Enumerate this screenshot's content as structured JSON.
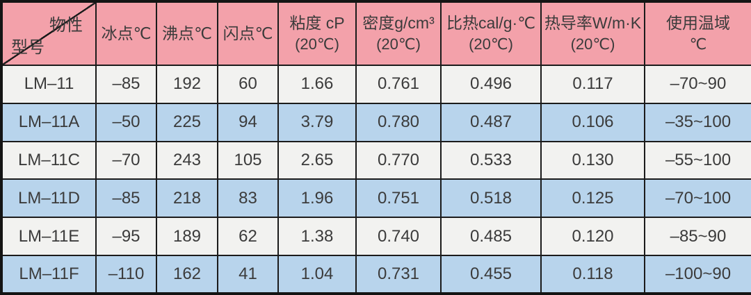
{
  "table": {
    "corner": {
      "top_right": "物性",
      "bottom_left": "型号"
    },
    "headers": [
      {
        "line1": "冰点℃",
        "line2": ""
      },
      {
        "line1": "沸点℃",
        "line2": ""
      },
      {
        "line1": "闪点℃",
        "line2": ""
      },
      {
        "line1": "粘度 cP",
        "line2": "(20℃)"
      },
      {
        "line1": "密度g/cm³",
        "line2": "(20℃)"
      },
      {
        "line1": "比热cal/g·℃",
        "line2": "(20℃)"
      },
      {
        "line1": "热导率W/m·K",
        "line2": "(20℃)"
      },
      {
        "line1": "使用温域",
        "line2": "℃"
      }
    ],
    "rows": [
      {
        "model": "LM–11",
        "values": [
          "–85",
          "192",
          "60",
          "1.66",
          "0.761",
          "0.496",
          "0.117",
          "–70~90"
        ]
      },
      {
        "model": "LM–11A",
        "values": [
          "–50",
          "225",
          "94",
          "3.79",
          "0.780",
          "0.487",
          "0.106",
          "–35~100"
        ]
      },
      {
        "model": "LM–11C",
        "values": [
          "–70",
          "243",
          "105",
          "2.65",
          "0.770",
          "0.533",
          "0.130",
          "–55~100"
        ]
      },
      {
        "model": "LM–11D",
        "values": [
          "–85",
          "218",
          "83",
          "1.96",
          "0.751",
          "0.518",
          "0.125",
          "–70~100"
        ]
      },
      {
        "model": "LM–11E",
        "values": [
          "–95",
          "189",
          "62",
          "1.38",
          "0.740",
          "0.485",
          "0.120",
          "–85~90"
        ]
      },
      {
        "model": "LM–11F",
        "values": [
          "–110",
          "162",
          "41",
          "1.04",
          "0.731",
          "0.455",
          "0.118",
          "–100~90"
        ]
      }
    ]
  },
  "colors": {
    "header_bg": "#f3a1aa",
    "row_white_bg": "#f2f2f0",
    "row_blue_bg": "#b8d4ec",
    "border": "#1b1b1b",
    "text": "#3b3b3b"
  }
}
